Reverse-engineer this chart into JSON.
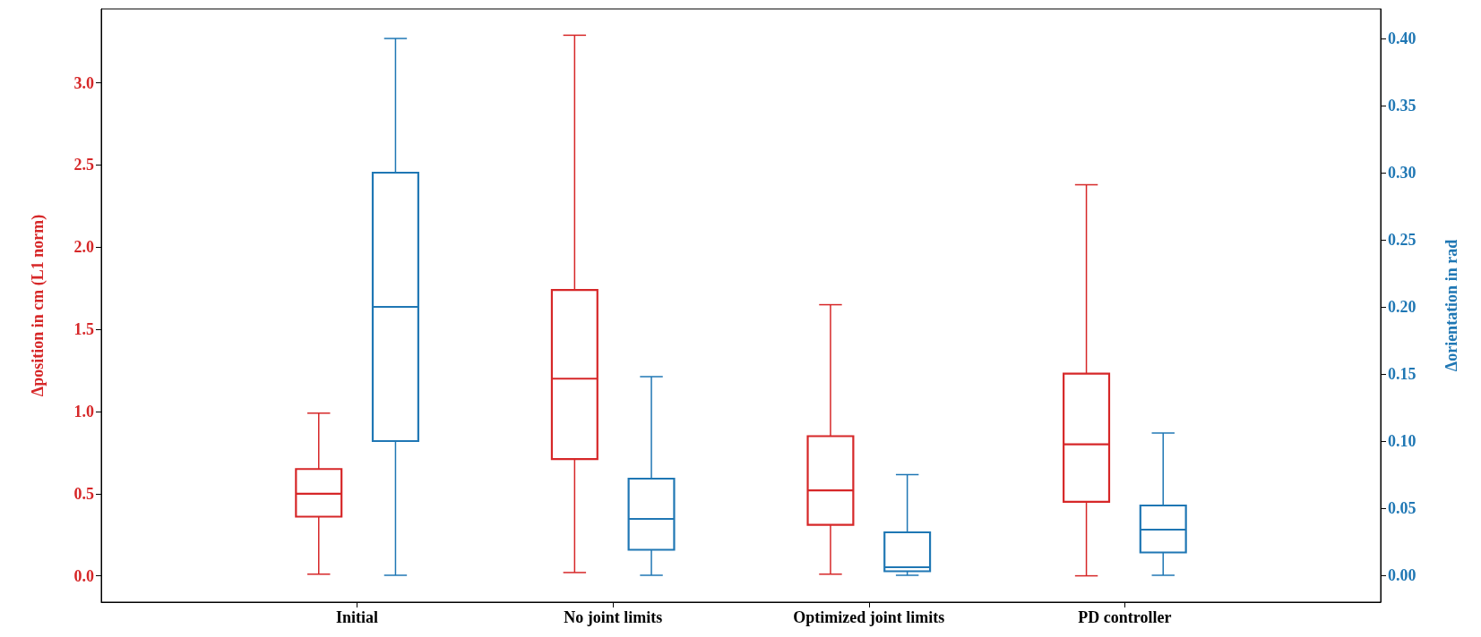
{
  "chart_data": {
    "type": "box",
    "ylabel": "Δposition in cm (L1 norm)",
    "y2label": "Δorientation in rad",
    "categories": [
      "Initial",
      "No joint limits",
      "Optimized joint limits",
      "PD controller"
    ],
    "ylim": [
      -0.16,
      3.45
    ],
    "yticks": [
      {
        "value": 0,
        "label": "0.0"
      },
      {
        "value": 0.5,
        "label": "0.5"
      },
      {
        "value": 1,
        "label": "1.0"
      },
      {
        "value": 1.5,
        "label": "1.5"
      },
      {
        "value": 2,
        "label": "2.0"
      },
      {
        "value": 2.5,
        "label": "2.5"
      },
      {
        "value": 3,
        "label": "3.0"
      }
    ],
    "y2lim": [
      -0.02,
      0.422
    ],
    "y2ticks": [
      {
        "value": 0,
        "label": "0.00"
      },
      {
        "value": 0.05,
        "label": "0.05"
      },
      {
        "value": 0.1,
        "label": "0.10"
      },
      {
        "value": 0.15,
        "label": "0.15"
      },
      {
        "value": 0.2,
        "label": "0.20"
      },
      {
        "value": 0.25,
        "label": "0.25"
      },
      {
        "value": 0.3,
        "label": "0.30"
      },
      {
        "value": 0.35,
        "label": "0.35"
      },
      {
        "value": 0.4,
        "label": "0.40"
      }
    ],
    "series": [
      {
        "color": "#d62728",
        "boxes": [
          {
            "low": 0.01,
            "q1": 0.36,
            "median": 0.5,
            "q3": 0.65,
            "high": 0.99
          },
          {
            "low": 0.02,
            "q1": 0.71,
            "median": 1.2,
            "q3": 1.74,
            "high": 3.29
          },
          {
            "low": 0.01,
            "q1": 0.31,
            "median": 0.52,
            "q3": 0.85,
            "high": 1.65
          },
          {
            "low": 0,
            "q1": 0.45,
            "median": 0.8,
            "q3": 1.23,
            "high": 2.38
          }
        ]
      },
      {
        "color": "#1f77b4",
        "axis": "y2",
        "boxes": [
          {
            "low": 0,
            "q1": 0.1,
            "median": 0.2,
            "q3": 0.3,
            "high": 0.4
          },
          {
            "low": 0,
            "q1": 0.019,
            "median": 0.042,
            "q3": 0.072,
            "high": 0.148
          },
          {
            "low": 0,
            "q1": 0.003,
            "median": 0.006,
            "q3": 0.032,
            "high": 0.075
          },
          {
            "low": 0,
            "q1": 0.017,
            "median": 0.034,
            "q3": 0.052,
            "high": 0.106
          }
        ]
      }
    ]
  }
}
